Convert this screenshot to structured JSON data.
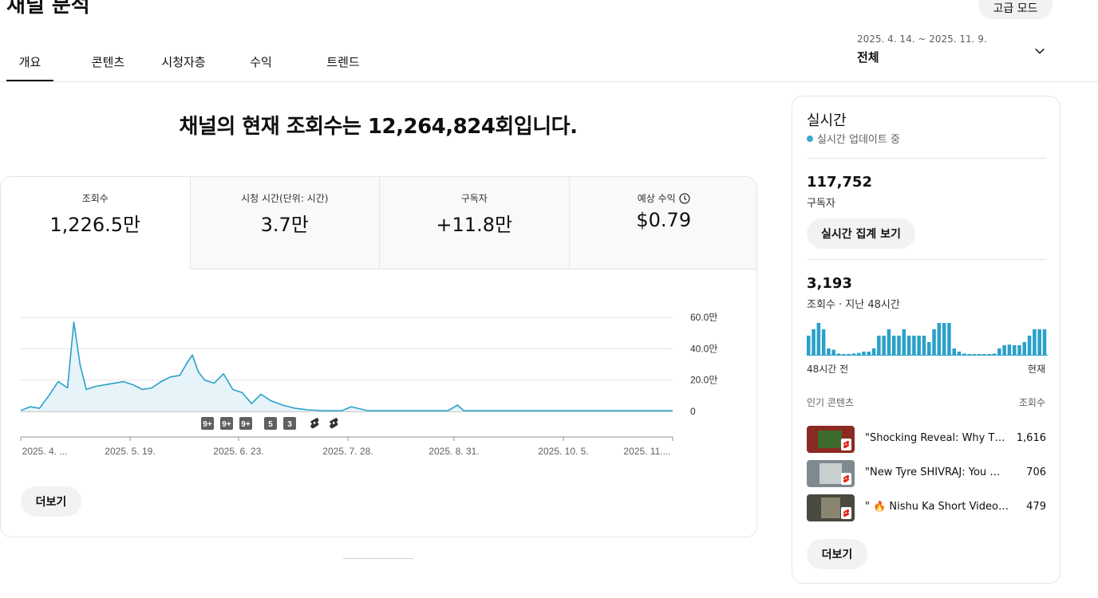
{
  "header": {
    "title": "채널 분석",
    "advanced_mode": "고급 모드",
    "tabs": [
      {
        "label": "개요",
        "active": true
      },
      {
        "label": "콘텐츠",
        "active": false
      },
      {
        "label": "시청자층",
        "active": false
      },
      {
        "label": "수익",
        "active": false
      },
      {
        "label": "트렌드",
        "active": false
      }
    ],
    "date_range": "2025. 4. 14. ~ 2025. 11. 9.",
    "date_selection": "전체"
  },
  "headline": "채널의 현재 조회수는 12,264,824회입니다.",
  "metrics": [
    {
      "label": "조회수",
      "value": "1,226.5만",
      "active": true
    },
    {
      "label": "시청 시간(단위: 시간)",
      "value": "3.7만",
      "active": false
    },
    {
      "label": "구독자",
      "value": "+11.8만",
      "active": false
    },
    {
      "label": "예상 수익",
      "value": "$0.79",
      "active": false
    }
  ],
  "chart_data": {
    "type": "area",
    "y_unit": "만",
    "ylim": [
      0,
      60
    ],
    "y_ticks": [
      "60.0만",
      "40.0만",
      "20.0만",
      "0"
    ],
    "x_tick_labels": [
      "2025. 4. ...",
      "2025. 5. 19.",
      "2025. 6. 23.",
      "2025. 7. 28.",
      "2025. 8. 31.",
      "2025. 10. 5.",
      "2025. 11...."
    ],
    "x": [
      "2025-04-14",
      "2025-04-17",
      "2025-04-20",
      "2025-04-23",
      "2025-04-26",
      "2025-04-29",
      "2025-05-01",
      "2025-05-03",
      "2025-05-05",
      "2025-05-08",
      "2025-05-11",
      "2025-05-14",
      "2025-05-17",
      "2025-05-20",
      "2025-05-23",
      "2025-05-26",
      "2025-05-29",
      "2025-06-01",
      "2025-06-04",
      "2025-06-06",
      "2025-06-08",
      "2025-06-10",
      "2025-06-12",
      "2025-06-15",
      "2025-06-18",
      "2025-06-21",
      "2025-06-24",
      "2025-06-27",
      "2025-06-30",
      "2025-07-03",
      "2025-07-07",
      "2025-07-11",
      "2025-07-15",
      "2025-07-20",
      "2025-07-26",
      "2025-07-29",
      "2025-08-03",
      "2025-08-15",
      "2025-08-29",
      "2025-09-01",
      "2025-09-03",
      "2025-09-15",
      "2025-10-01",
      "2025-10-15",
      "2025-10-25",
      "2025-11-09"
    ],
    "values": [
      0.5,
      3,
      2,
      10,
      19,
      15,
      57,
      30,
      14,
      16,
      17,
      18,
      19,
      17,
      14,
      15,
      19,
      22,
      23,
      30,
      36,
      25,
      20,
      18,
      24,
      14,
      12,
      5,
      11,
      7,
      4,
      2,
      1,
      0.5,
      0.5,
      3,
      0.5,
      0.5,
      0.5,
      4,
      0.5,
      0.5,
      0.5,
      0.5,
      0.5,
      0.5
    ],
    "grid": true,
    "annotations": [
      "9+",
      "9+",
      "9+",
      "5",
      "3"
    ]
  },
  "more_label": "더보기",
  "realtime": {
    "title": "실시간",
    "status": "실시간 업데이트 중",
    "subscribers_value": "117,752",
    "subscribers_label": "구독자",
    "view_button": "실시간 집계 보기",
    "views_value": "3,193",
    "views_label": "조회수 · 지난 48시간",
    "bars": [
      3,
      4,
      5,
      4,
      1,
      0.8,
      0.2,
      0.1,
      0.1,
      0.2,
      0.3,
      0.5,
      0.5,
      1,
      3,
      3,
      4,
      3,
      3,
      4,
      3,
      3,
      3,
      3,
      2,
      4,
      5,
      5,
      5,
      1,
      0.5,
      0.2,
      0.1,
      0.1,
      0.1,
      0.1,
      0.1,
      0.2,
      1,
      1.5,
      1.6,
      1.5,
      1.5,
      2,
      3,
      4,
      4,
      4
    ],
    "bars_max": 5,
    "axis_left": "48시간 전",
    "axis_right": "현재",
    "popular_header": "인기 콘텐츠",
    "popular_views_header": "조회수",
    "popular": [
      {
        "title": "\"Shocking Reveal: Why Th...",
        "views": "1,616",
        "thumb_color": "#8b2a22"
      },
      {
        "title": "\"New Tyre SHIVRAJ: You W...",
        "views": "706",
        "thumb_color": "#7e8a8f"
      },
      {
        "title": "\" 🔥 Nishu Ka Short Video ...",
        "views": "479",
        "thumb_color": "#4a4940"
      }
    ],
    "more_label": "더보기"
  },
  "colors": {
    "accent": "#2aa1c8",
    "area_fill": "#e6f3f9",
    "live_dot": "#3ea6d1",
    "shorts_red": "#e62117"
  }
}
